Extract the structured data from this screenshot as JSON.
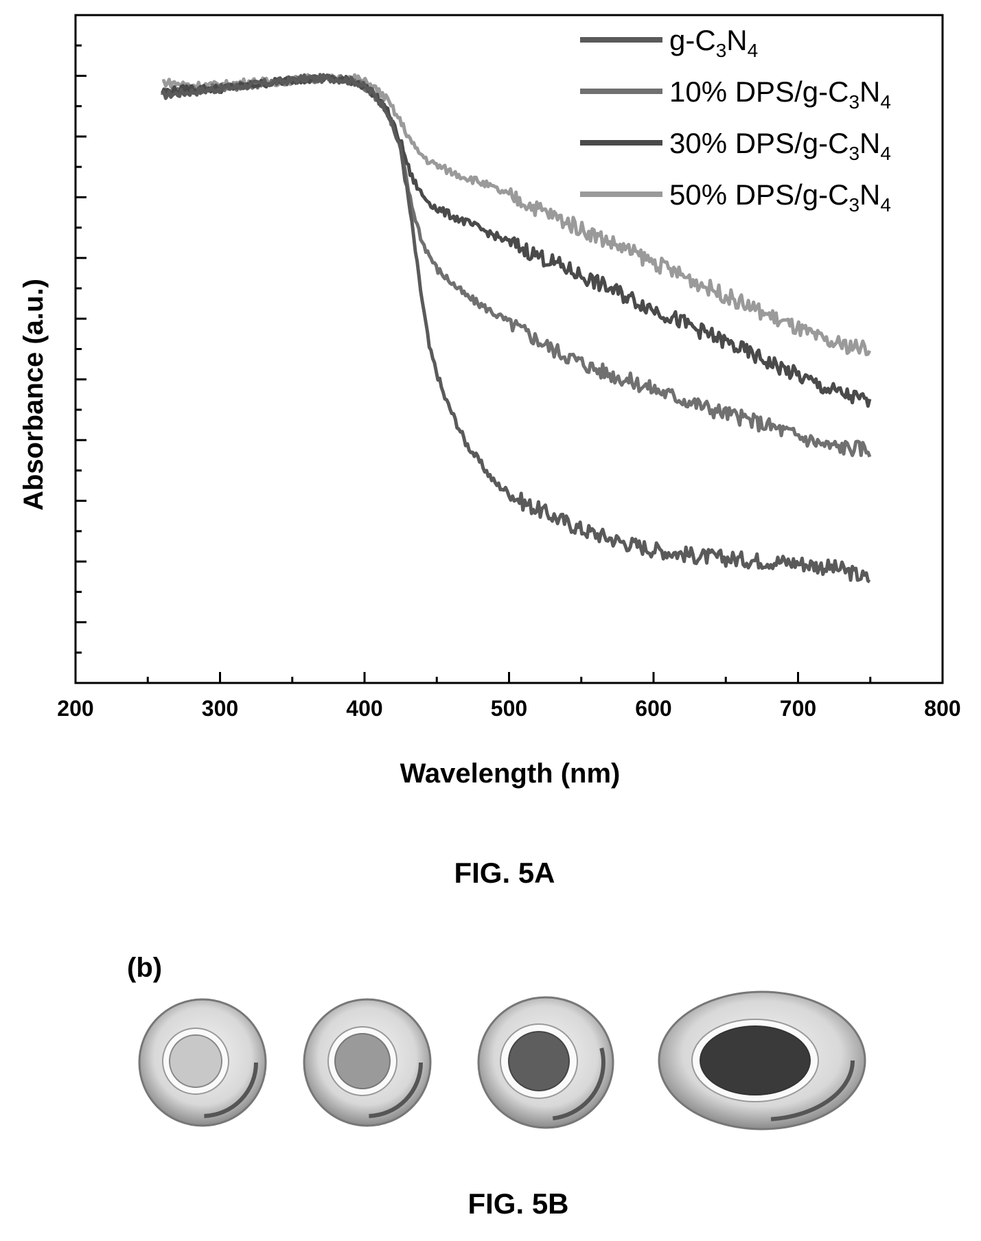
{
  "chart_data": {
    "type": "line",
    "title": "",
    "xlabel": "Wavelength (nm)",
    "ylabel": "Absorbance (a.u.)",
    "xlim": [
      200,
      800
    ],
    "ylim": [
      0,
      1
    ],
    "x_ticks": [
      200,
      300,
      400,
      500,
      600,
      700,
      800
    ],
    "x_tick_labels": [
      "200",
      "300",
      "400",
      "500",
      "600",
      "700",
      "800"
    ],
    "y_tick_labels_shown": false,
    "grid": false,
    "legend_position": "top-right",
    "series": [
      {
        "name": "g-C3N4",
        "name_base": "g-C",
        "name_sub1": "3",
        "name_mid": "N",
        "name_sub2": "4",
        "color": "#5a5a5a",
        "x": [
          260,
          280,
          300,
          320,
          340,
          360,
          380,
          395,
          405,
          415,
          425,
          432,
          438,
          445,
          455,
          470,
          490,
          510,
          530,
          550,
          580,
          600,
          630,
          660,
          700,
          730,
          750
        ],
        "y": [
          0.88,
          0.885,
          0.89,
          0.895,
          0.9,
          0.905,
          0.905,
          0.9,
          0.885,
          0.86,
          0.8,
          0.7,
          0.6,
          0.5,
          0.43,
          0.36,
          0.3,
          0.27,
          0.25,
          0.23,
          0.21,
          0.2,
          0.19,
          0.185,
          0.18,
          0.17,
          0.155
        ]
      },
      {
        "name": "10% DPS/g-C3N4",
        "name_base": "10% DPS/g-C",
        "name_sub1": "3",
        "name_mid": "N",
        "name_sub2": "4",
        "color": "#707070",
        "x": [
          260,
          280,
          300,
          320,
          340,
          360,
          380,
          395,
          405,
          415,
          425,
          432,
          440,
          450,
          470,
          500,
          530,
          560,
          600,
          640,
          680,
          720,
          750
        ],
        "y": [
          0.885,
          0.89,
          0.89,
          0.895,
          0.9,
          0.905,
          0.905,
          0.9,
          0.885,
          0.86,
          0.8,
          0.72,
          0.66,
          0.62,
          0.58,
          0.54,
          0.5,
          0.47,
          0.44,
          0.41,
          0.385,
          0.355,
          0.35
        ]
      },
      {
        "name": "30% DPS/g-C3N4",
        "name_base": "30% DPS/g-C",
        "name_sub1": "3",
        "name_mid": "N",
        "name_sub2": "4",
        "color": "#4a4a4a",
        "x": [
          260,
          280,
          300,
          320,
          340,
          360,
          380,
          395,
          405,
          415,
          425,
          432,
          440,
          450,
          470,
          500,
          530,
          560,
          600,
          640,
          680,
          720,
          750
        ],
        "y": [
          0.885,
          0.89,
          0.89,
          0.895,
          0.9,
          0.905,
          0.905,
          0.9,
          0.885,
          0.86,
          0.81,
          0.76,
          0.73,
          0.71,
          0.69,
          0.66,
          0.63,
          0.6,
          0.56,
          0.52,
          0.48,
          0.44,
          0.42
        ]
      },
      {
        "name": "50% DPS/g-C3N4",
        "name_base": "50% DPS/g-C",
        "name_sub1": "3",
        "name_mid": "N",
        "name_sub2": "4",
        "color": "#9a9a9a",
        "x": [
          260,
          280,
          300,
          320,
          340,
          360,
          380,
          395,
          405,
          415,
          425,
          435,
          445,
          460,
          480,
          510,
          540,
          570,
          600,
          640,
          680,
          720,
          750
        ],
        "y": [
          0.9,
          0.895,
          0.895,
          0.9,
          0.9,
          0.905,
          0.905,
          0.905,
          0.895,
          0.875,
          0.84,
          0.8,
          0.78,
          0.765,
          0.75,
          0.72,
          0.69,
          0.66,
          0.63,
          0.59,
          0.55,
          0.51,
          0.5
        ]
      }
    ]
  },
  "figure": {
    "caption_a": "FIG. 5A",
    "panel_b_label": "(b)",
    "caption_b": "FIG. 5B"
  },
  "dishes": [
    {
      "name": "dish-1",
      "fill": "#c8c8c8"
    },
    {
      "name": "dish-2",
      "fill": "#9a9a9a"
    },
    {
      "name": "dish-3",
      "fill": "#5e5e5e"
    },
    {
      "name": "dish-4",
      "fill": "#3a3a3a"
    }
  ]
}
